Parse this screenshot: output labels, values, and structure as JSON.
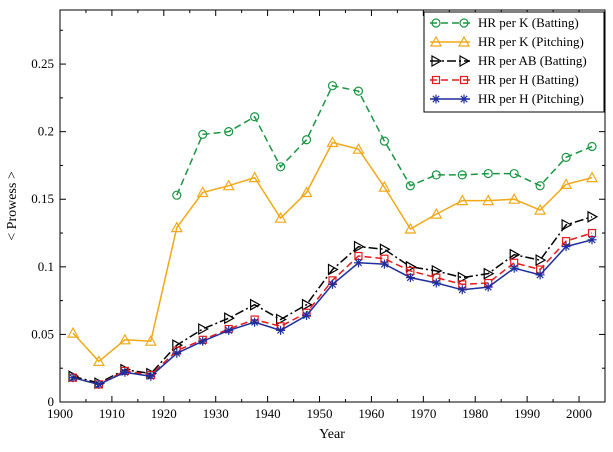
{
  "chart_data": {
    "type": "line",
    "title": "",
    "xlabel": "Year",
    "ylabel": "< Prowess >",
    "xlim": [
      1900,
      2005
    ],
    "ylim": [
      0,
      0.29
    ],
    "xticks": [
      1900,
      1910,
      1920,
      1930,
      1940,
      1950,
      1960,
      1970,
      1980,
      1990,
      2000
    ],
    "yticks": [
      0,
      0.05,
      0.1,
      0.15,
      0.2,
      0.25
    ],
    "ytick_labels": [
      "0",
      "0.05",
      "0.1",
      "0.15",
      "0.2",
      "0.25"
    ],
    "grid": false,
    "legend_position": "top-right",
    "series": [
      {
        "name": "HR per K (Batting)",
        "color": "#1a9641",
        "dash": "dashed",
        "marker": "circle",
        "x": [
          1922.5,
          1927.5,
          1932.5,
          1937.5,
          1942.5,
          1947.5,
          1952.5,
          1957.5,
          1962.5,
          1967.5,
          1972.5,
          1977.5,
          1982.5,
          1987.5,
          1992.5,
          1997.5,
          2002.5
        ],
        "values": [
          0.153,
          0.198,
          0.2,
          0.211,
          0.174,
          0.194,
          0.234,
          0.23,
          0.193,
          0.16,
          0.168,
          0.168,
          0.169,
          0.169,
          0.16,
          0.181,
          0.189
        ]
      },
      {
        "name": "HR per K (Pitching)",
        "color": "#f0a818",
        "dash": "solid",
        "marker": "triangle-up",
        "x": [
          1902.5,
          1907.5,
          1912.5,
          1917.5,
          1922.5,
          1927.5,
          1932.5,
          1937.5,
          1942.5,
          1947.5,
          1952.5,
          1957.5,
          1962.5,
          1967.5,
          1972.5,
          1977.5,
          1982.5,
          1987.5,
          1992.5,
          1997.5,
          2002.5
        ],
        "values": [
          0.051,
          0.03,
          0.046,
          0.045,
          0.129,
          0.155,
          0.16,
          0.166,
          0.136,
          0.155,
          0.192,
          0.187,
          0.159,
          0.128,
          0.139,
          0.149,
          0.149,
          0.15,
          0.142,
          0.161,
          0.166
        ]
      },
      {
        "name": "HR per AB (Batting)",
        "color": "#000000",
        "dash": "dashdot",
        "marker": "triangle-right",
        "x": [
          1902.5,
          1907.5,
          1912.5,
          1917.5,
          1922.5,
          1927.5,
          1932.5,
          1937.5,
          1942.5,
          1947.5,
          1952.5,
          1957.5,
          1962.5,
          1967.5,
          1972.5,
          1977.5,
          1982.5,
          1987.5,
          1992.5,
          1997.5,
          2002.5
        ],
        "values": [
          0.019,
          0.014,
          0.024,
          0.021,
          0.042,
          0.054,
          0.062,
          0.072,
          0.061,
          0.072,
          0.098,
          0.115,
          0.113,
          0.1,
          0.097,
          0.092,
          0.095,
          0.109,
          0.105,
          0.131,
          0.137
        ]
      },
      {
        "name": "HR per H (Batting)",
        "color": "#e41a1c",
        "dash": "dashed",
        "marker": "square",
        "x": [
          1902.5,
          1907.5,
          1912.5,
          1917.5,
          1922.5,
          1927.5,
          1932.5,
          1937.5,
          1942.5,
          1947.5,
          1952.5,
          1957.5,
          1962.5,
          1967.5,
          1972.5,
          1977.5,
          1982.5,
          1987.5,
          1992.5,
          1997.5,
          2002.5
        ],
        "values": [
          0.018,
          0.013,
          0.023,
          0.02,
          0.038,
          0.046,
          0.054,
          0.061,
          0.056,
          0.066,
          0.09,
          0.108,
          0.106,
          0.097,
          0.092,
          0.087,
          0.088,
          0.103,
          0.098,
          0.119,
          0.125
        ]
      },
      {
        "name": "HR per H (Pitching)",
        "color": "#1f2f9c",
        "dash": "solid",
        "marker": "asterisk",
        "x": [
          1902.5,
          1907.5,
          1912.5,
          1917.5,
          1922.5,
          1927.5,
          1932.5,
          1937.5,
          1942.5,
          1947.5,
          1952.5,
          1957.5,
          1962.5,
          1967.5,
          1972.5,
          1977.5,
          1982.5,
          1987.5,
          1992.5,
          1997.5,
          2002.5
        ],
        "values": [
          0.018,
          0.013,
          0.022,
          0.019,
          0.036,
          0.045,
          0.053,
          0.059,
          0.053,
          0.064,
          0.087,
          0.103,
          0.102,
          0.092,
          0.088,
          0.083,
          0.085,
          0.099,
          0.094,
          0.115,
          0.12
        ]
      }
    ]
  }
}
